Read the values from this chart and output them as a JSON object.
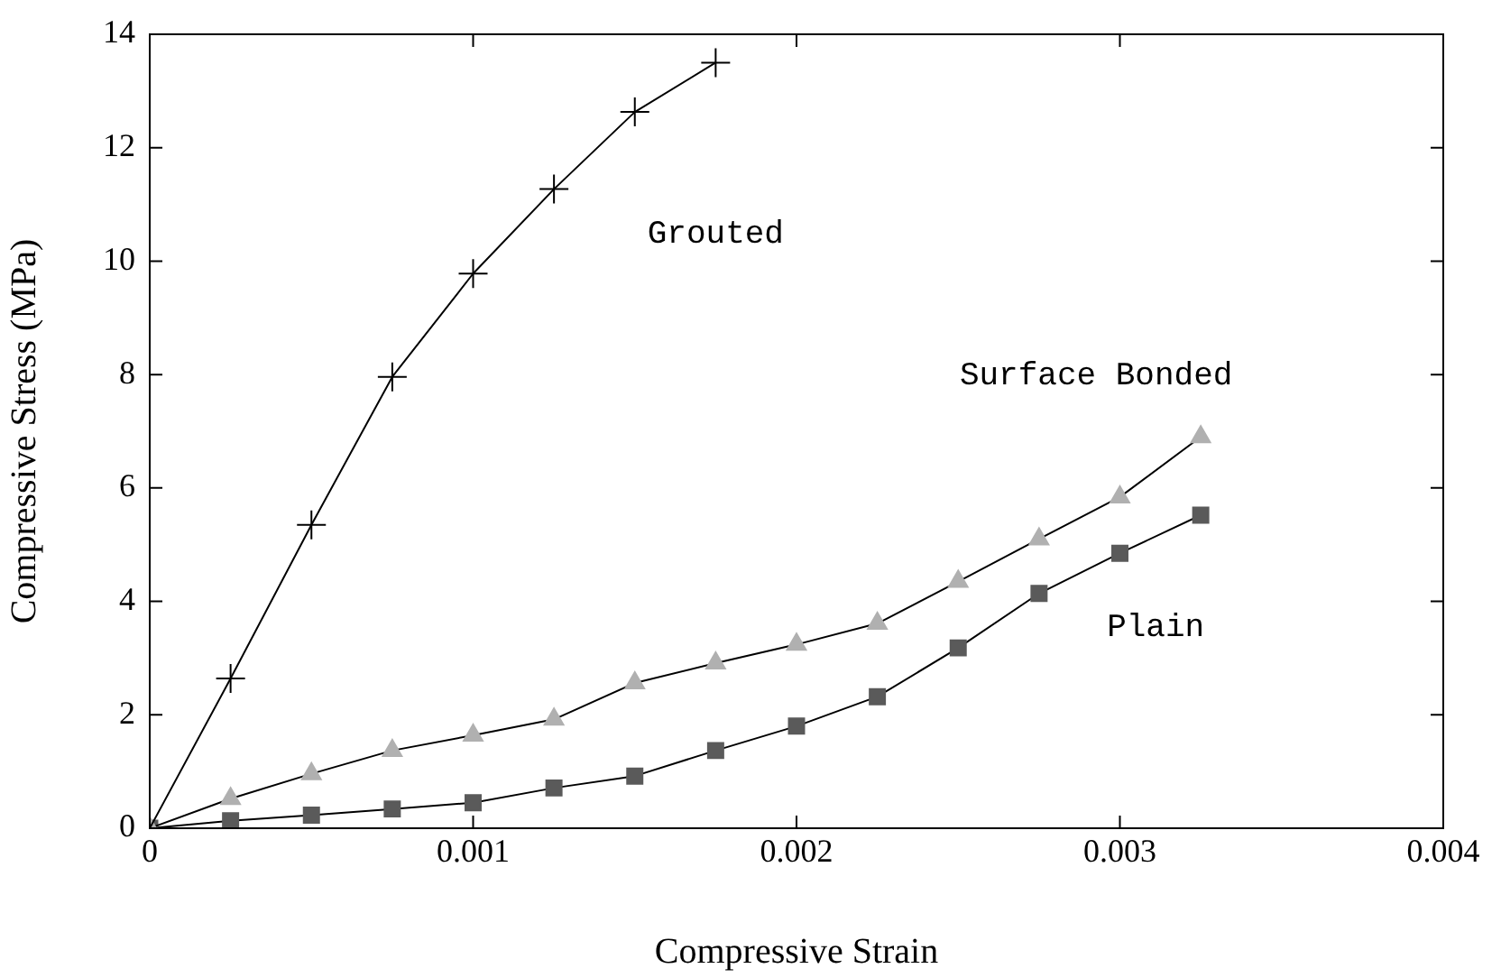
{
  "chart_data": {
    "type": "line",
    "xlabel": "Compressive Strain",
    "ylabel": "Compressive Stress (MPa)",
    "xlim": [
      0,
      0.004
    ],
    "xticks": [
      0,
      0.001,
      0.002,
      0.003,
      0.004
    ],
    "ylim": [
      0,
      14
    ],
    "yticks": [
      0,
      2,
      4,
      6,
      8,
      10,
      12,
      14
    ],
    "grid": false,
    "legend": false,
    "series": [
      {
        "name": "Grouted",
        "color": "#000000",
        "marker": "cross",
        "x": [
          0,
          0.00025,
          0.0005,
          0.00075,
          0.001,
          0.00125,
          0.0015,
          0.00175
        ],
        "values": [
          0,
          2.64,
          5.35,
          7.96,
          9.78,
          11.27,
          12.63,
          13.5
        ]
      },
      {
        "name": "Surface Bonded",
        "color": "#b0b0b0",
        "marker": "triangle",
        "x": [
          0,
          0.00025,
          0.0005,
          0.00075,
          0.001,
          0.00125,
          0.0015,
          0.00175,
          0.002,
          0.00225,
          0.0025,
          0.00275,
          0.003,
          0.00325
        ],
        "values": [
          0,
          0.52,
          0.96,
          1.37,
          1.64,
          1.92,
          2.56,
          2.91,
          3.24,
          3.61,
          4.35,
          5.1,
          5.84,
          6.9
        ]
      },
      {
        "name": "Plain",
        "color": "#5a5a5a",
        "marker": "square",
        "x": [
          0,
          0.00025,
          0.0005,
          0.00075,
          0.001,
          0.00125,
          0.0015,
          0.00175,
          0.002,
          0.00225,
          0.0025,
          0.00275,
          0.003,
          0.00325
        ],
        "values": [
          0,
          0.13,
          0.23,
          0.34,
          0.45,
          0.71,
          0.92,
          1.37,
          1.8,
          2.32,
          3.18,
          4.14,
          4.85,
          5.52
        ]
      }
    ]
  }
}
